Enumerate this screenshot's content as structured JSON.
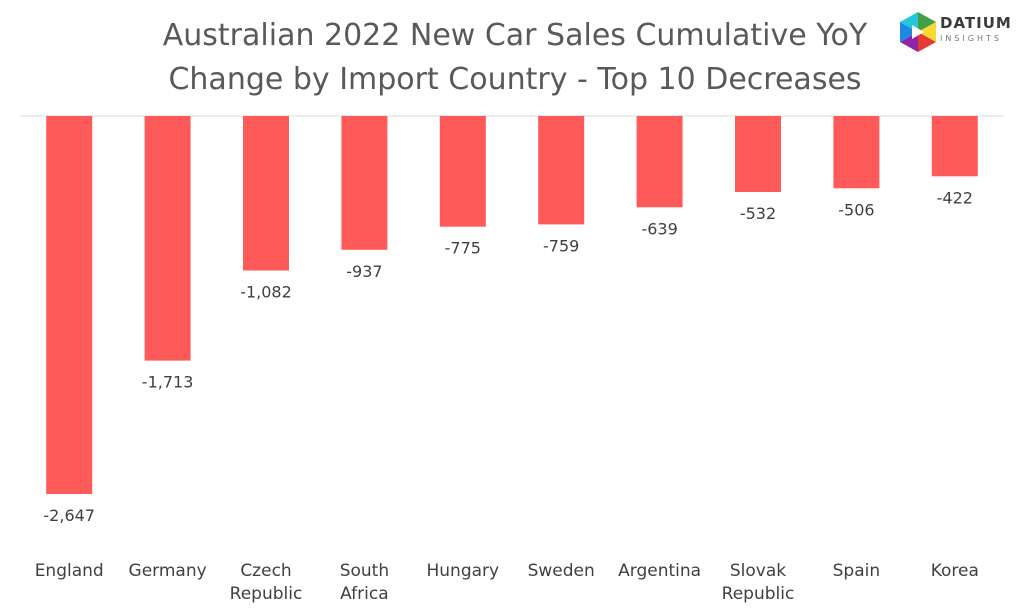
{
  "title_line1": "Australian 2022 New Car Sales Cumulative YoY",
  "title_line2": "Change by Import Country - Top 10 Decreases",
  "logo": {
    "name": "DATIUM",
    "tagline": "INSIGHTS",
    "colors": [
      "#1e88e5",
      "#43a047",
      "#fdd835",
      "#e53935",
      "#8e24aa"
    ]
  },
  "colors": {
    "bar": "#ff5a5a",
    "axis": "#d9d9d9",
    "label": "#404040",
    "title": "#595959"
  },
  "chart_data": {
    "type": "bar",
    "title": "Australian 2022 New Car Sales Cumulative YoY Change by Import Country - Top 10 Decreases",
    "categories": [
      [
        "England"
      ],
      [
        "Germany"
      ],
      [
        "Czech",
        "Republic"
      ],
      [
        "South",
        "Africa"
      ],
      [
        "Hungary"
      ],
      [
        "Sweden"
      ],
      [
        "Argentina"
      ],
      [
        "Slovak",
        "Republic"
      ],
      [
        "Spain"
      ],
      [
        "Korea"
      ]
    ],
    "values": [
      -2647,
      -1713,
      -1082,
      -937,
      -775,
      -759,
      -639,
      -532,
      -506,
      -422
    ],
    "value_labels": [
      "-2,647",
      "-1,713",
      "-1,082",
      "-937",
      "-775",
      "-759",
      "-639",
      "-532",
      "-506",
      "-422"
    ],
    "xlabel": "",
    "ylabel": "",
    "ylim": [
      -2647,
      0
    ],
    "grid": false,
    "legend": "none"
  }
}
